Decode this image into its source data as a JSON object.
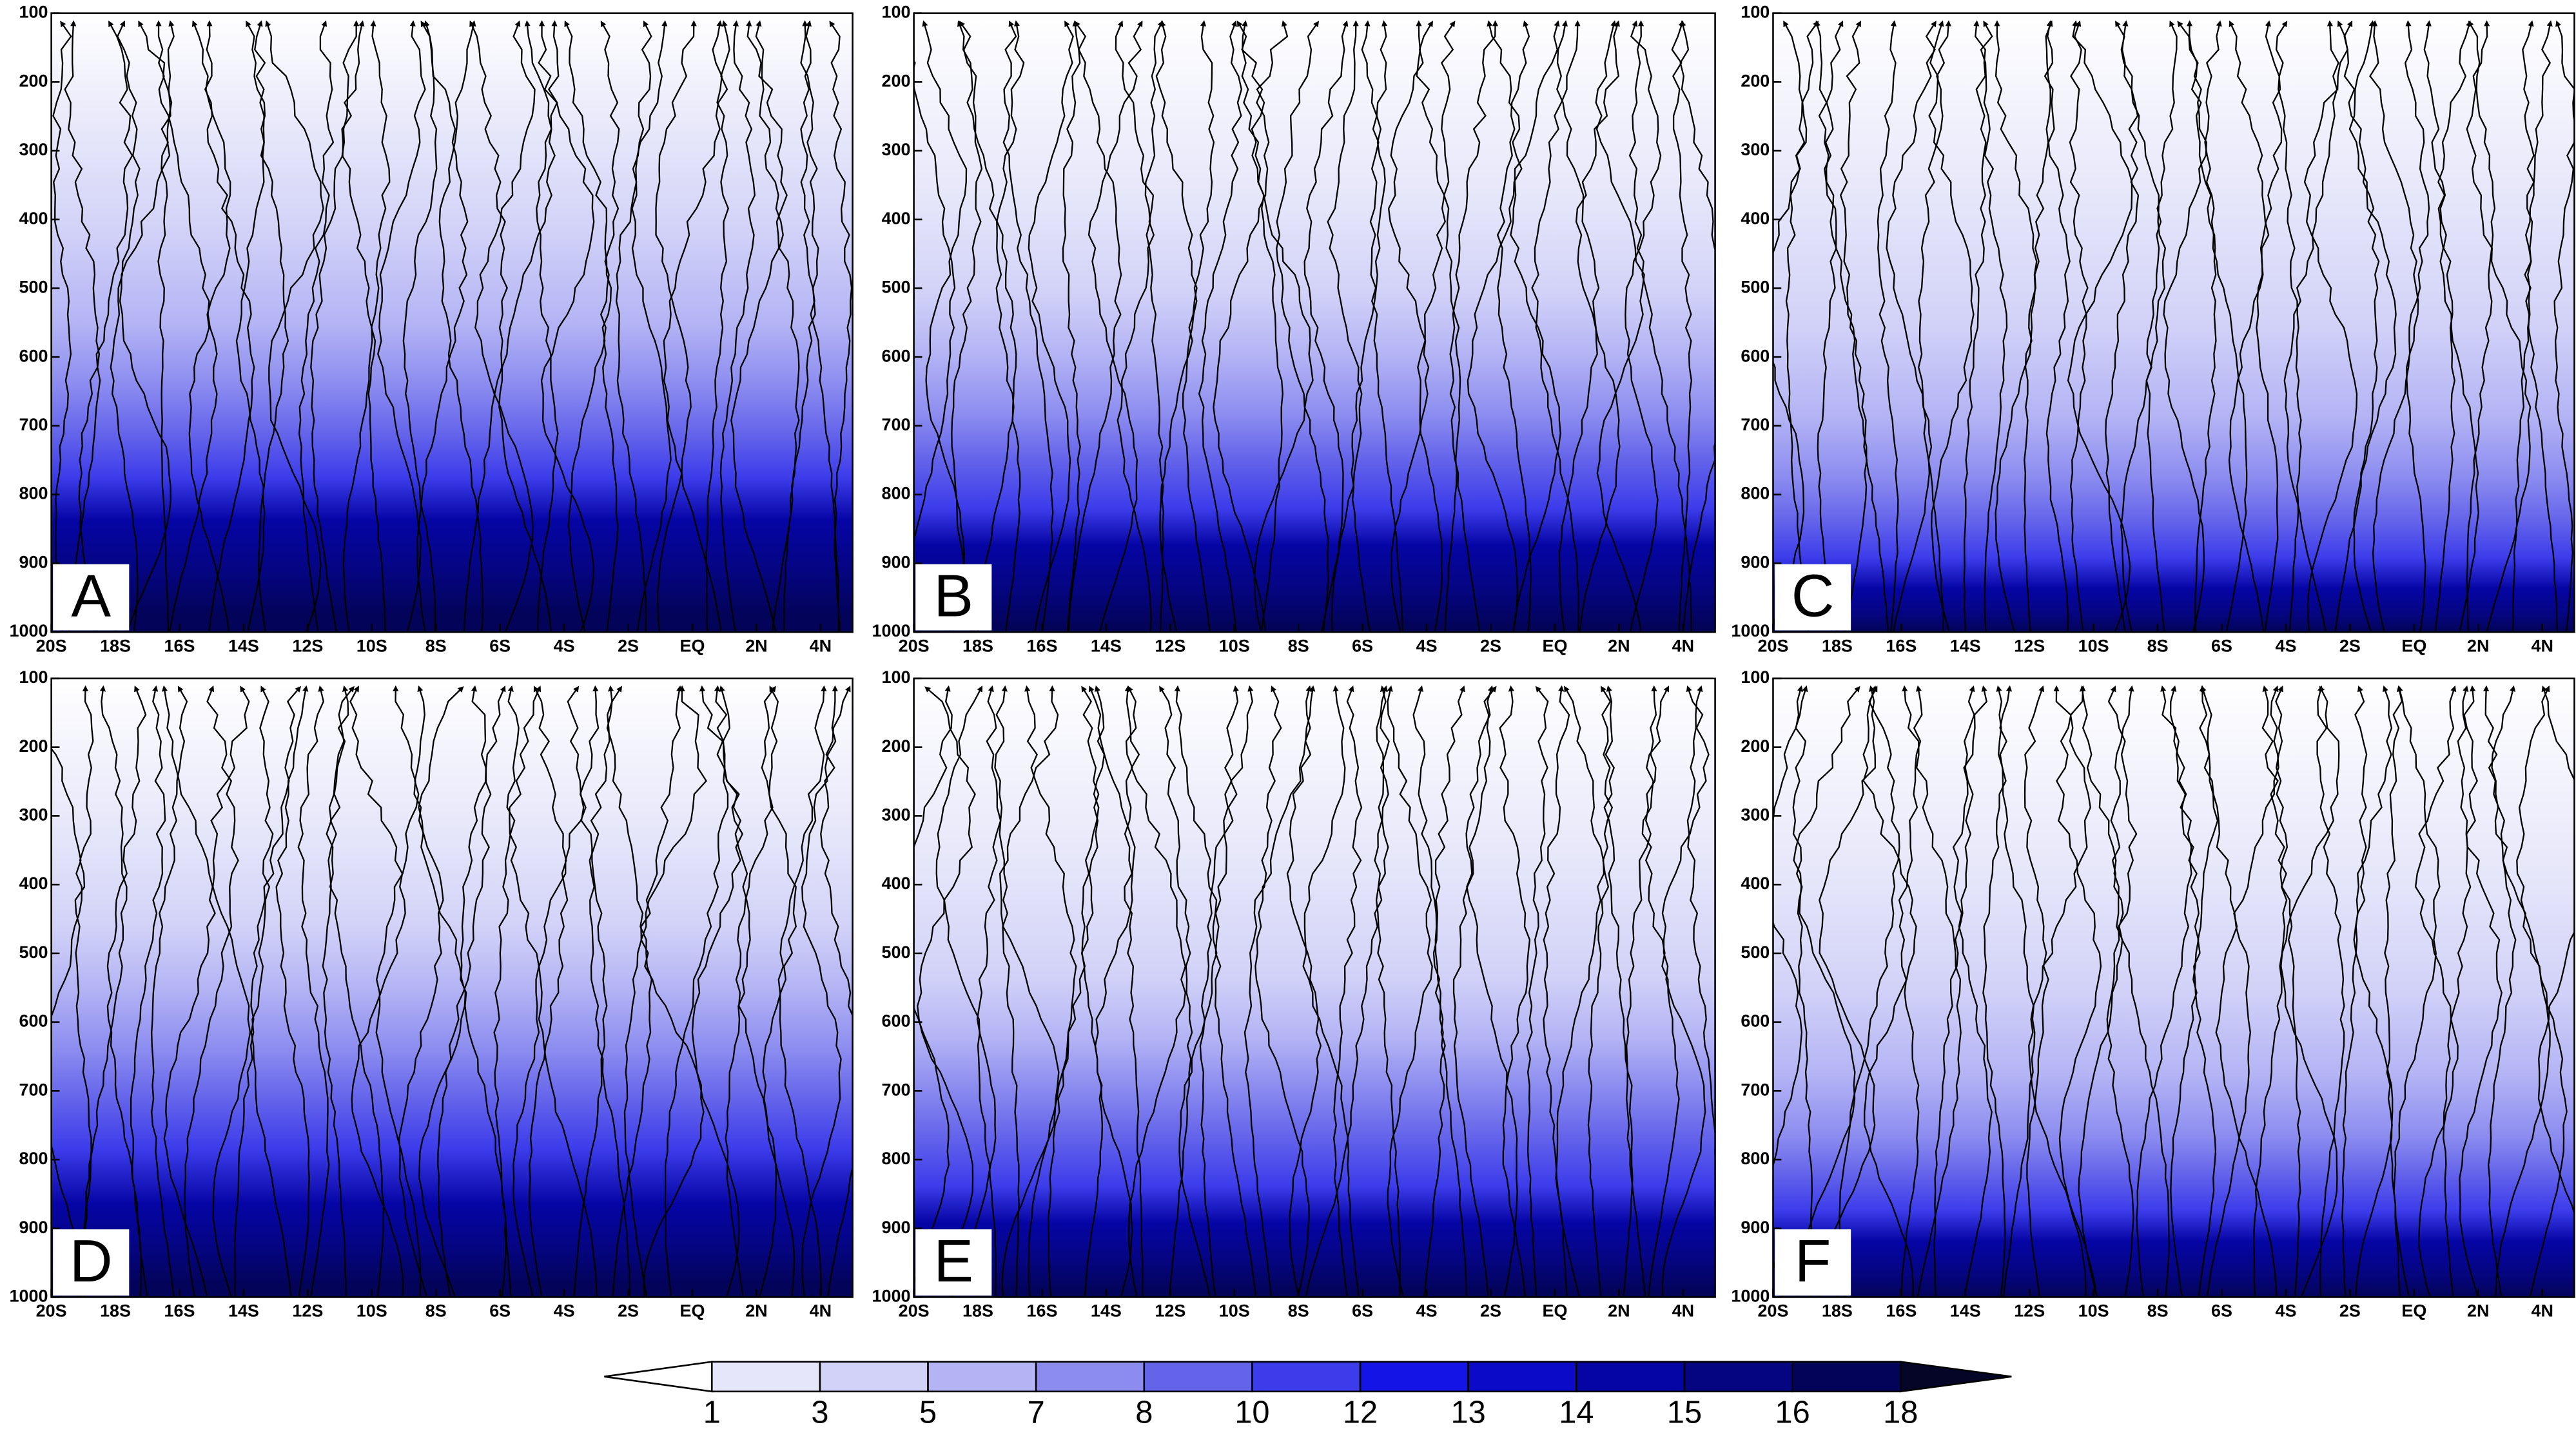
{
  "chart_data": [
    {
      "type": "contour",
      "panel_label": "A",
      "xlim": [
        -20,
        5
      ],
      "ylim": [
        1000,
        100
      ],
      "xticks": [
        {
          "value": -20,
          "label": "20S"
        },
        {
          "value": -18,
          "label": "18S"
        },
        {
          "value": -16,
          "label": "16S"
        },
        {
          "value": -14,
          "label": "14S"
        },
        {
          "value": -12,
          "label": "12S"
        },
        {
          "value": -10,
          "label": "10S"
        },
        {
          "value": -8,
          "label": "8S"
        },
        {
          "value": -6,
          "label": "6S"
        },
        {
          "value": -4,
          "label": "4S"
        },
        {
          "value": -2,
          "label": "2S"
        },
        {
          "value": 0,
          "label": "EQ"
        },
        {
          "value": 2,
          "label": "2N"
        },
        {
          "value": 4,
          "label": "4N"
        }
      ],
      "yticks": [
        100,
        200,
        300,
        400,
        500,
        600,
        700,
        800,
        900,
        1000
      ]
    },
    {
      "type": "contour",
      "panel_label": "B",
      "xlim": [
        -20,
        5
      ],
      "ylim": [
        1000,
        100
      ],
      "xticks": [
        {
          "value": -20,
          "label": "20S"
        },
        {
          "value": -18,
          "label": "18S"
        },
        {
          "value": -16,
          "label": "16S"
        },
        {
          "value": -14,
          "label": "14S"
        },
        {
          "value": -12,
          "label": "12S"
        },
        {
          "value": -10,
          "label": "10S"
        },
        {
          "value": -8,
          "label": "8S"
        },
        {
          "value": -6,
          "label": "6S"
        },
        {
          "value": -4,
          "label": "4S"
        },
        {
          "value": -2,
          "label": "2S"
        },
        {
          "value": 0,
          "label": "EQ"
        },
        {
          "value": 2,
          "label": "2N"
        },
        {
          "value": 4,
          "label": "4N"
        }
      ],
      "yticks": [
        100,
        200,
        300,
        400,
        500,
        600,
        700,
        800,
        900,
        1000
      ]
    },
    {
      "type": "contour",
      "panel_label": "C",
      "xlim": [
        -20,
        5
      ],
      "ylim": [
        1000,
        100
      ],
      "xticks": [
        {
          "value": -20,
          "label": "20S"
        },
        {
          "value": -18,
          "label": "18S"
        },
        {
          "value": -16,
          "label": "16S"
        },
        {
          "value": -14,
          "label": "14S"
        },
        {
          "value": -12,
          "label": "12S"
        },
        {
          "value": -10,
          "label": "10S"
        },
        {
          "value": -8,
          "label": "8S"
        },
        {
          "value": -6,
          "label": "6S"
        },
        {
          "value": -4,
          "label": "4S"
        },
        {
          "value": -2,
          "label": "2S"
        },
        {
          "value": 0,
          "label": "EQ"
        },
        {
          "value": 2,
          "label": "2N"
        },
        {
          "value": 4,
          "label": "4N"
        }
      ],
      "yticks": [
        100,
        200,
        300,
        400,
        500,
        600,
        700,
        800,
        900,
        1000
      ]
    },
    {
      "type": "contour",
      "panel_label": "D",
      "xlim": [
        -20,
        5
      ],
      "ylim": [
        1000,
        100
      ],
      "xticks": [
        {
          "value": -20,
          "label": "20S"
        },
        {
          "value": -18,
          "label": "18S"
        },
        {
          "value": -16,
          "label": "16S"
        },
        {
          "value": -14,
          "label": "14S"
        },
        {
          "value": -12,
          "label": "12S"
        },
        {
          "value": -10,
          "label": "10S"
        },
        {
          "value": -8,
          "label": "8S"
        },
        {
          "value": -6,
          "label": "6S"
        },
        {
          "value": -4,
          "label": "4S"
        },
        {
          "value": -2,
          "label": "2S"
        },
        {
          "value": 0,
          "label": "EQ"
        },
        {
          "value": 2,
          "label": "2N"
        },
        {
          "value": 4,
          "label": "4N"
        }
      ],
      "yticks": [
        100,
        200,
        300,
        400,
        500,
        600,
        700,
        800,
        900,
        1000
      ]
    },
    {
      "type": "contour",
      "panel_label": "E",
      "xlim": [
        -20,
        5
      ],
      "ylim": [
        1000,
        100
      ],
      "xticks": [
        {
          "value": -20,
          "label": "20S"
        },
        {
          "value": -18,
          "label": "18S"
        },
        {
          "value": -16,
          "label": "16S"
        },
        {
          "value": -14,
          "label": "14S"
        },
        {
          "value": -12,
          "label": "12S"
        },
        {
          "value": -10,
          "label": "10S"
        },
        {
          "value": -8,
          "label": "8S"
        },
        {
          "value": -6,
          "label": "6S"
        },
        {
          "value": -4,
          "label": "4S"
        },
        {
          "value": -2,
          "label": "2S"
        },
        {
          "value": 0,
          "label": "EQ"
        },
        {
          "value": 2,
          "label": "2N"
        },
        {
          "value": 4,
          "label": "4N"
        }
      ],
      "yticks": [
        100,
        200,
        300,
        400,
        500,
        600,
        700,
        800,
        900,
        1000
      ]
    },
    {
      "type": "contour",
      "panel_label": "F",
      "xlim": [
        -20,
        5
      ],
      "ylim": [
        1000,
        100
      ],
      "xticks": [
        {
          "value": -20,
          "label": "20S"
        },
        {
          "value": -18,
          "label": "18S"
        },
        {
          "value": -16,
          "label": "16S"
        },
        {
          "value": -14,
          "label": "14S"
        },
        {
          "value": -12,
          "label": "12S"
        },
        {
          "value": -10,
          "label": "10S"
        },
        {
          "value": -8,
          "label": "8S"
        },
        {
          "value": -6,
          "label": "6S"
        },
        {
          "value": -4,
          "label": "4S"
        },
        {
          "value": -2,
          "label": "2S"
        },
        {
          "value": 0,
          "label": "EQ"
        },
        {
          "value": 2,
          "label": "2N"
        },
        {
          "value": 4,
          "label": "4N"
        }
      ],
      "yticks": [
        100,
        200,
        300,
        400,
        500,
        600,
        700,
        800,
        900,
        1000
      ]
    }
  ],
  "colorbar": {
    "levels": [
      1,
      3,
      5,
      7,
      8,
      10,
      12,
      13,
      14,
      15,
      16,
      18
    ],
    "colors": [
      "#ffffff",
      "#e6e6fa",
      "#d2d2f8",
      "#b4b4f5",
      "#8c8cf0",
      "#6464eb",
      "#3c3ceb",
      "#1414e6",
      "#0a0ac8",
      "#0505a5",
      "#050582",
      "#03035a",
      "#050528"
    ]
  }
}
